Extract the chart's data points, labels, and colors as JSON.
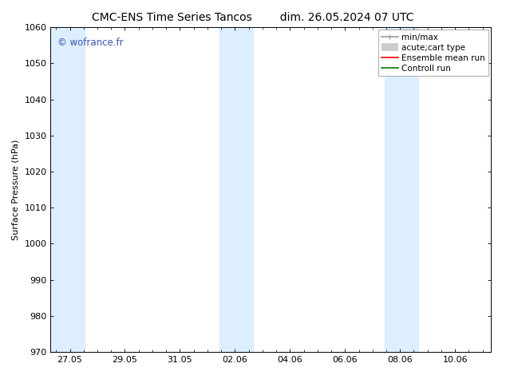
{
  "title_left": "CMC-ENS Time Series Tancos",
  "title_right": "dim. 26.05.2024 07 UTC",
  "ylabel": "Surface Pressure (hPa)",
  "ylim": [
    970,
    1060
  ],
  "yticks": [
    970,
    980,
    990,
    1000,
    1010,
    1020,
    1030,
    1040,
    1050,
    1060
  ],
  "xtick_labels": [
    "27.05",
    "29.05",
    "31.05",
    "02.06",
    "04.06",
    "06.06",
    "08.06",
    "10.06"
  ],
  "xtick_positions": [
    0,
    2,
    4,
    6,
    8,
    10,
    12,
    14
  ],
  "xlim": [
    -0.7,
    15.3
  ],
  "background_color": "#ffffff",
  "plot_bg_color": "#ffffff",
  "shaded_color": "#ddeeff",
  "shaded_bands": [
    {
      "x_start": -0.7,
      "x_end": 0.55
    },
    {
      "x_start": 5.45,
      "x_end": 6.65
    },
    {
      "x_start": 11.45,
      "x_end": 12.65
    }
  ],
  "watermark_text": "© wofrance.fr",
  "watermark_color": "#3355bb",
  "legend_labels": [
    "min/max",
    "acute;cart type",
    "Ensemble mean run",
    "Controll run"
  ],
  "legend_colors": [
    "#999999",
    "#cccccc",
    "#ff0000",
    "#007700"
  ],
  "title_fontsize": 10,
  "tick_fontsize": 8,
  "ylabel_fontsize": 8,
  "legend_fontsize": 7.5
}
